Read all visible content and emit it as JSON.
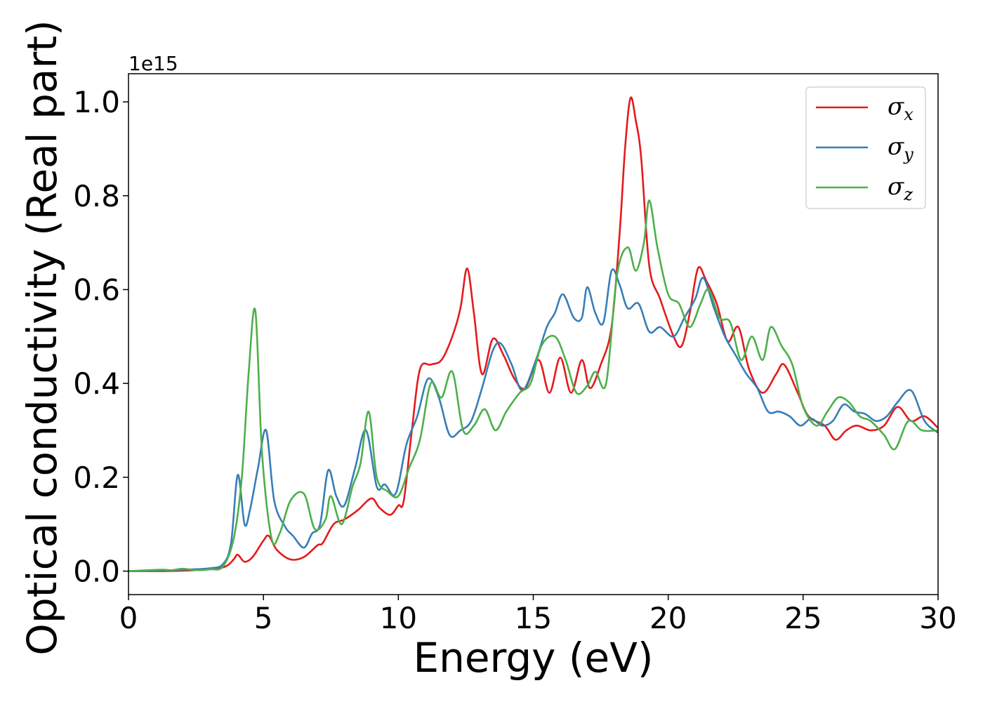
{
  "chart_data": {
    "type": "line",
    "xlabel": "Energy (eV)",
    "ylabel": "Optical conductivity (Real part)",
    "y_offset_text": "1e15",
    "xlim": [
      0,
      30
    ],
    "ylim": [
      -0.05,
      1.06
    ],
    "grid": false,
    "legend_position": "top-right",
    "x_ticks": [
      0,
      5,
      10,
      15,
      20,
      25,
      30
    ],
    "x_tick_labels": [
      "0",
      "5",
      "10",
      "15",
      "20",
      "25",
      "30"
    ],
    "y_ticks": [
      0.0,
      0.2,
      0.4,
      0.6,
      0.8,
      1.0
    ],
    "y_tick_labels": [
      "0.0",
      "0.2",
      "0.4",
      "0.6",
      "0.8",
      "1.0"
    ],
    "series": [
      {
        "name": "σx",
        "symbol": "σ",
        "subscript": "x",
        "color": "#e41a1c",
        "points": [
          [
            0,
            0
          ],
          [
            1,
            0
          ],
          [
            2,
            0.001
          ],
          [
            3,
            0.004
          ],
          [
            3.6,
            0.01
          ],
          [
            3.9,
            0.025
          ],
          [
            4.05,
            0.035
          ],
          [
            4.3,
            0.02
          ],
          [
            4.6,
            0.03
          ],
          [
            5,
            0.065
          ],
          [
            5.2,
            0.075
          ],
          [
            5.5,
            0.045
          ],
          [
            6,
            0.025
          ],
          [
            6.5,
            0.03
          ],
          [
            7,
            0.055
          ],
          [
            7.2,
            0.06
          ],
          [
            7.6,
            0.1
          ],
          [
            8,
            0.11
          ],
          [
            8.5,
            0.13
          ],
          [
            9,
            0.155
          ],
          [
            9.3,
            0.135
          ],
          [
            9.7,
            0.12
          ],
          [
            10,
            0.14
          ],
          [
            10.2,
            0.15
          ],
          [
            10.5,
            0.3
          ],
          [
            10.8,
            0.43
          ],
          [
            11.2,
            0.44
          ],
          [
            11.6,
            0.45
          ],
          [
            12,
            0.5
          ],
          [
            12.3,
            0.56
          ],
          [
            12.55,
            0.645
          ],
          [
            12.8,
            0.55
          ],
          [
            13.1,
            0.42
          ],
          [
            13.5,
            0.495
          ],
          [
            13.9,
            0.46
          ],
          [
            14.3,
            0.41
          ],
          [
            14.7,
            0.39
          ],
          [
            15.2,
            0.45
          ],
          [
            15.6,
            0.38
          ],
          [
            16,
            0.455
          ],
          [
            16.4,
            0.38
          ],
          [
            16.8,
            0.45
          ],
          [
            17.1,
            0.39
          ],
          [
            17.5,
            0.44
          ],
          [
            17.9,
            0.52
          ],
          [
            18.2,
            0.72
          ],
          [
            18.4,
            0.9
          ],
          [
            18.6,
            1.008
          ],
          [
            18.8,
            0.96
          ],
          [
            19,
            0.88
          ],
          [
            19.3,
            0.65
          ],
          [
            19.7,
            0.58
          ],
          [
            20.2,
            0.5
          ],
          [
            20.5,
            0.48
          ],
          [
            20.8,
            0.55
          ],
          [
            21.1,
            0.645
          ],
          [
            21.4,
            0.62
          ],
          [
            21.8,
            0.57
          ],
          [
            22.2,
            0.49
          ],
          [
            22.6,
            0.52
          ],
          [
            23,
            0.43
          ],
          [
            23.5,
            0.38
          ],
          [
            24,
            0.42
          ],
          [
            24.3,
            0.44
          ],
          [
            24.8,
            0.38
          ],
          [
            25.2,
            0.33
          ],
          [
            25.8,
            0.31
          ],
          [
            26.2,
            0.28
          ],
          [
            26.6,
            0.3
          ],
          [
            27,
            0.31
          ],
          [
            27.5,
            0.3
          ],
          [
            28,
            0.31
          ],
          [
            28.5,
            0.35
          ],
          [
            29,
            0.32
          ],
          [
            29.5,
            0.33
          ],
          [
            30,
            0.305
          ]
        ]
      },
      {
        "name": "σy",
        "symbol": "σ",
        "subscript": "y",
        "color": "#377eb8",
        "points": [
          [
            0,
            0
          ],
          [
            1,
            0.001
          ],
          [
            2,
            0.003
          ],
          [
            3,
            0.006
          ],
          [
            3.5,
            0.015
          ],
          [
            3.8,
            0.06
          ],
          [
            4.05,
            0.205
          ],
          [
            4.3,
            0.1
          ],
          [
            4.5,
            0.13
          ],
          [
            4.8,
            0.22
          ],
          [
            5.1,
            0.3
          ],
          [
            5.4,
            0.15
          ],
          [
            5.8,
            0.095
          ],
          [
            6.1,
            0.075
          ],
          [
            6.5,
            0.05
          ],
          [
            6.8,
            0.08
          ],
          [
            7.1,
            0.1
          ],
          [
            7.4,
            0.215
          ],
          [
            7.7,
            0.16
          ],
          [
            8,
            0.14
          ],
          [
            8.4,
            0.22
          ],
          [
            8.8,
            0.3
          ],
          [
            9.2,
            0.18
          ],
          [
            9.5,
            0.185
          ],
          [
            9.9,
            0.165
          ],
          [
            10.3,
            0.27
          ],
          [
            10.7,
            0.33
          ],
          [
            11.1,
            0.41
          ],
          [
            11.5,
            0.37
          ],
          [
            11.9,
            0.29
          ],
          [
            12.3,
            0.3
          ],
          [
            12.7,
            0.32
          ],
          [
            13.1,
            0.39
          ],
          [
            13.5,
            0.47
          ],
          [
            13.8,
            0.485
          ],
          [
            14.2,
            0.44
          ],
          [
            14.6,
            0.385
          ],
          [
            15.1,
            0.45
          ],
          [
            15.5,
            0.52
          ],
          [
            15.8,
            0.55
          ],
          [
            16.1,
            0.59
          ],
          [
            16.5,
            0.54
          ],
          [
            16.8,
            0.54
          ],
          [
            17,
            0.605
          ],
          [
            17.3,
            0.55
          ],
          [
            17.6,
            0.53
          ],
          [
            17.9,
            0.64
          ],
          [
            18.2,
            0.61
          ],
          [
            18.5,
            0.56
          ],
          [
            18.9,
            0.57
          ],
          [
            19.3,
            0.51
          ],
          [
            19.7,
            0.52
          ],
          [
            20.2,
            0.5
          ],
          [
            20.6,
            0.54
          ],
          [
            21,
            0.58
          ],
          [
            21.3,
            0.625
          ],
          [
            21.7,
            0.56
          ],
          [
            22.1,
            0.5
          ],
          [
            22.5,
            0.46
          ],
          [
            22.9,
            0.42
          ],
          [
            23.3,
            0.39
          ],
          [
            23.7,
            0.34
          ],
          [
            24.1,
            0.34
          ],
          [
            24.5,
            0.33
          ],
          [
            24.9,
            0.31
          ],
          [
            25.3,
            0.325
          ],
          [
            25.7,
            0.31
          ],
          [
            26.1,
            0.32
          ],
          [
            26.5,
            0.355
          ],
          [
            26.9,
            0.34
          ],
          [
            27.3,
            0.335
          ],
          [
            27.7,
            0.32
          ],
          [
            28.1,
            0.33
          ],
          [
            28.5,
            0.36
          ],
          [
            29,
            0.385
          ],
          [
            29.5,
            0.32
          ],
          [
            30,
            0.295
          ]
        ]
      },
      {
        "name": "σz",
        "symbol": "σ",
        "subscript": "z",
        "color": "#4daf4a",
        "points": [
          [
            0,
            0
          ],
          [
            1.2,
            0.003
          ],
          [
            1.6,
            0.002
          ],
          [
            2,
            0.005
          ],
          [
            2.5,
            0.002
          ],
          [
            3,
            0.004
          ],
          [
            3.5,
            0.01
          ],
          [
            3.9,
            0.07
          ],
          [
            4.2,
            0.2
          ],
          [
            4.45,
            0.42
          ],
          [
            4.7,
            0.555
          ],
          [
            4.95,
            0.25
          ],
          [
            5.3,
            0.07
          ],
          [
            5.6,
            0.08
          ],
          [
            6,
            0.15
          ],
          [
            6.5,
            0.165
          ],
          [
            6.9,
            0.09
          ],
          [
            7.3,
            0.11
          ],
          [
            7.5,
            0.16
          ],
          [
            7.9,
            0.1
          ],
          [
            8.3,
            0.18
          ],
          [
            8.6,
            0.23
          ],
          [
            8.9,
            0.34
          ],
          [
            9.2,
            0.2
          ],
          [
            9.6,
            0.17
          ],
          [
            10,
            0.16
          ],
          [
            10.4,
            0.22
          ],
          [
            10.8,
            0.28
          ],
          [
            11.2,
            0.4
          ],
          [
            11.6,
            0.37
          ],
          [
            12,
            0.425
          ],
          [
            12.4,
            0.3
          ],
          [
            12.8,
            0.31
          ],
          [
            13.2,
            0.345
          ],
          [
            13.6,
            0.3
          ],
          [
            14,
            0.34
          ],
          [
            14.5,
            0.38
          ],
          [
            14.9,
            0.4
          ],
          [
            15.3,
            0.48
          ],
          [
            15.8,
            0.5
          ],
          [
            16.2,
            0.45
          ],
          [
            16.6,
            0.38
          ],
          [
            17,
            0.395
          ],
          [
            17.3,
            0.425
          ],
          [
            17.7,
            0.4
          ],
          [
            18.1,
            0.63
          ],
          [
            18.5,
            0.69
          ],
          [
            18.8,
            0.64
          ],
          [
            19.1,
            0.7
          ],
          [
            19.3,
            0.79
          ],
          [
            19.6,
            0.69
          ],
          [
            20,
            0.59
          ],
          [
            20.4,
            0.57
          ],
          [
            20.8,
            0.52
          ],
          [
            21.2,
            0.57
          ],
          [
            21.5,
            0.6
          ],
          [
            21.9,
            0.54
          ],
          [
            22.3,
            0.53
          ],
          [
            22.7,
            0.45
          ],
          [
            23.1,
            0.5
          ],
          [
            23.5,
            0.45
          ],
          [
            23.8,
            0.52
          ],
          [
            24.2,
            0.48
          ],
          [
            24.6,
            0.44
          ],
          [
            25,
            0.35
          ],
          [
            25.5,
            0.31
          ],
          [
            25.9,
            0.34
          ],
          [
            26.3,
            0.37
          ],
          [
            26.7,
            0.36
          ],
          [
            27.1,
            0.33
          ],
          [
            27.5,
            0.32
          ],
          [
            28,
            0.29
          ],
          [
            28.4,
            0.26
          ],
          [
            28.9,
            0.32
          ],
          [
            29.4,
            0.3
          ],
          [
            30,
            0.3
          ]
        ]
      }
    ]
  }
}
